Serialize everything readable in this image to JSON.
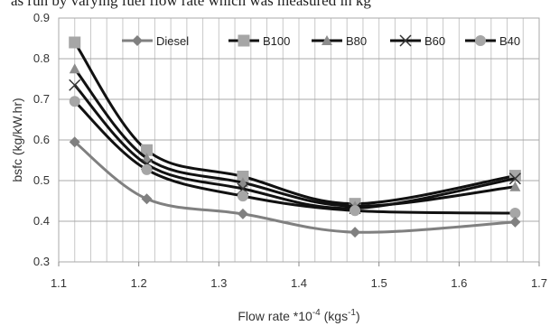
{
  "caption": "as run by varying fuel flow rate which was measured in kg",
  "chart_data": {
    "type": "line",
    "xlabel": "Flow rate *10",
    "xlabel_sup": "-4",
    "xlabel_unit": " (kgs",
    "xlabel_unit_sup": "-1",
    "xlabel_end": ")",
    "ylabel": "bsfc  (kg/kW.hr)",
    "xlim": [
      1.1,
      1.7
    ],
    "ylim": [
      0.3,
      0.9
    ],
    "xticks": [
      "1.1",
      "1.2",
      "1.3",
      "1.4",
      "1.5",
      "1.6",
      "1.7"
    ],
    "yticks": [
      "0.3",
      "0.4",
      "0.5",
      "0.6",
      "0.7",
      "0.8",
      "0.9"
    ],
    "x_minor_grid_step": 0.02,
    "legend_position": "top",
    "series": [
      {
        "name": "Diesel",
        "color": "#808080",
        "marker": "diamond",
        "x": [
          1.12,
          1.21,
          1.33,
          1.47,
          1.67
        ],
        "y": [
          0.595,
          0.455,
          0.418,
          0.373,
          0.398
        ]
      },
      {
        "name": "B100",
        "color": "#111111",
        "marker": "square",
        "x": [
          1.12,
          1.21,
          1.33,
          1.47,
          1.67
        ],
        "y": [
          0.84,
          0.575,
          0.51,
          0.443,
          0.512
        ]
      },
      {
        "name": "B80",
        "color": "#111111",
        "marker": "triangle",
        "x": [
          1.12,
          1.21,
          1.33,
          1.47,
          1.67
        ],
        "y": [
          0.775,
          0.555,
          0.495,
          0.437,
          0.485
        ]
      },
      {
        "name": "B60",
        "color": "#111111",
        "marker": "x",
        "x": [
          1.12,
          1.21,
          1.33,
          1.47,
          1.67
        ],
        "y": [
          0.735,
          0.54,
          0.48,
          0.432,
          0.505
        ]
      },
      {
        "name": "B40",
        "color": "#111111",
        "marker": "circle",
        "x": [
          1.12,
          1.21,
          1.33,
          1.47,
          1.67
        ],
        "y": [
          0.695,
          0.527,
          0.462,
          0.426,
          0.42
        ]
      }
    ]
  }
}
